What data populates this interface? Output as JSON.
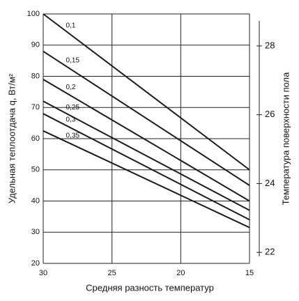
{
  "chart_data": {
    "type": "line",
    "xlabel": "Средняя разность температур",
    "ylabel": "Удельная теплоотдача q, Вт/м²",
    "y2label": "Температура поверхности пола",
    "x": [
      30,
      15
    ],
    "xlim": [
      30,
      15
    ],
    "xticks": [
      30,
      25,
      20,
      15
    ],
    "ylim": [
      20,
      100
    ],
    "yticks": [
      20,
      30,
      40,
      50,
      60,
      70,
      80,
      90,
      100
    ],
    "y2lim": [
      21.68,
      28.93
    ],
    "y2ticks": [
      22,
      24,
      26,
      28
    ],
    "grid": true,
    "series": [
      {
        "name": "0,1",
        "color": "#1a1a1a",
        "values": [
          100,
          50
        ]
      },
      {
        "name": "0,15",
        "color": "#1a1a1a",
        "values": [
          88,
          45
        ]
      },
      {
        "name": "0,2",
        "color": "#1a1a1a",
        "values": [
          79,
          40
        ]
      },
      {
        "name": "0,25",
        "color": "#1a1a1a",
        "values": [
          72,
          37
        ]
      },
      {
        "name": "0,3",
        "color": "#1a1a1a",
        "values": [
          68,
          34
        ]
      },
      {
        "name": "0,35",
        "color": "#1a1a1a",
        "values": [
          62.5,
          31.5
        ]
      }
    ]
  }
}
